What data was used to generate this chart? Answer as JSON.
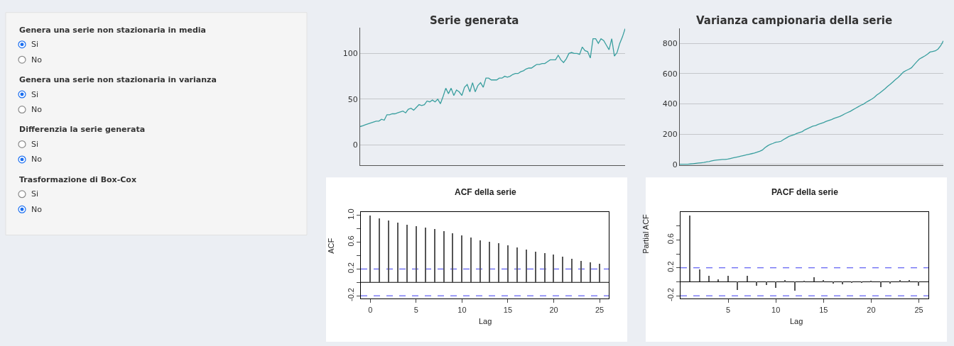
{
  "chart_data": [
    {
      "type": "other",
      "annotations": [
        "Genera una serie non stazionaria in media",
        "Si",
        "No",
        "Genera una serie non stazionaria in varianza",
        "Si",
        "No",
        "Differenzia la serie generata",
        "Si",
        "No",
        "Trasformazione di Box-Cox",
        "Si",
        "No"
      ]
    },
    {
      "type": "line",
      "title": "Serie generata",
      "categories": [
        null,
        null,
        null,
        null,
        null,
        null,
        null,
        null,
        null,
        null,
        null,
        null,
        null,
        null,
        null,
        null,
        null,
        null,
        null,
        null,
        null,
        null,
        null,
        null,
        null,
        null,
        null,
        null,
        null,
        null,
        null,
        null,
        null,
        null,
        null,
        null,
        null,
        null,
        null,
        null,
        null,
        null,
        null,
        null,
        null,
        null,
        null,
        null,
        null,
        null,
        null,
        null,
        null,
        null,
        null,
        null,
        null,
        null,
        null,
        null,
        null,
        null,
        null,
        null,
        null,
        null,
        null,
        null,
        null,
        null,
        null,
        null,
        null,
        null,
        null,
        null,
        null,
        null,
        null,
        null,
        null,
        null,
        null,
        null,
        null,
        null,
        null,
        null,
        null,
        null,
        null,
        null,
        null,
        null,
        null,
        null,
        null,
        null,
        null,
        null
      ],
      "series": [
        {
          "color": "#3a9f9f",
          "values": [
            20,
            21,
            22,
            23,
            24,
            25,
            26,
            26,
            28,
            27,
            33,
            33,
            34,
            34,
            35,
            36,
            37,
            35,
            39,
            40,
            38,
            41,
            44,
            43,
            44,
            48,
            47,
            49,
            47,
            50,
            45,
            53,
            62,
            56,
            62,
            54,
            60,
            58,
            54,
            63,
            66,
            58,
            68,
            58,
            65,
            68,
            63,
            73,
            73,
            71,
            71,
            71,
            73,
            73,
            75,
            74,
            75,
            77,
            78,
            78,
            80,
            81,
            83,
            84,
            84,
            86,
            88,
            88,
            89,
            89,
            91,
            93,
            93,
            93,
            98,
            93,
            90,
            94,
            100,
            101,
            100,
            100,
            99,
            107,
            103,
            102,
            95,
            116,
            116,
            111,
            116,
            114,
            109,
            104,
            116,
            97,
            101,
            111,
            118,
            127
          ]
        }
      ],
      "ylim": [
        -22,
        128
      ],
      "yticks": [
        0,
        50,
        100
      ],
      "grid": "y",
      "tick_labels": "y"
    },
    {
      "type": "line",
      "title": "Varianza campionaria della serie",
      "categories": [
        null,
        null,
        null,
        null,
        null,
        null,
        null,
        null,
        null,
        null,
        null,
        null,
        null,
        null,
        null,
        null,
        null,
        null,
        null,
        null,
        null,
        null,
        null,
        null,
        null,
        null,
        null,
        null,
        null,
        null,
        null,
        null,
        null,
        null,
        null,
        null,
        null,
        null,
        null,
        null,
        null,
        null,
        null,
        null,
        null,
        null,
        null,
        null,
        null,
        null,
        null,
        null,
        null,
        null,
        null,
        null,
        null,
        null,
        null,
        null,
        null,
        null,
        null,
        null,
        null,
        null,
        null,
        null,
        null,
        null,
        null,
        null,
        null,
        null,
        null,
        null,
        null,
        null,
        null,
        null,
        null,
        null,
        null,
        null,
        null,
        null,
        null,
        null,
        null,
        null,
        null,
        null,
        null,
        null,
        null,
        null,
        null,
        null,
        null,
        null
      ],
      "series": [
        {
          "color": "#3a9f9f",
          "values": [
            0,
            0,
            0,
            0,
            2,
            4,
            6,
            8,
            10,
            12,
            16,
            18,
            22,
            26,
            28,
            30,
            32,
            32,
            34,
            38,
            42,
            46,
            50,
            54,
            58,
            62,
            66,
            70,
            74,
            80,
            86,
            94,
            110,
            122,
            132,
            138,
            146,
            148,
            152,
            164,
            174,
            184,
            190,
            196,
            204,
            210,
            216,
            228,
            236,
            244,
            252,
            256,
            264,
            270,
            276,
            284,
            290,
            296,
            304,
            310,
            316,
            324,
            334,
            342,
            350,
            360,
            370,
            380,
            390,
            398,
            410,
            420,
            430,
            442,
            458,
            470,
            484,
            498,
            514,
            528,
            544,
            560,
            574,
            592,
            610,
            620,
            628,
            638,
            658,
            678,
            696,
            706,
            716,
            728,
            742,
            746,
            750,
            762,
            784,
            816
          ]
        }
      ],
      "ylim": [
        -5,
        898
      ],
      "yticks": [
        0,
        200,
        400,
        600,
        800
      ],
      "grid": "y",
      "tick_labels": "y"
    },
    {
      "type": "bar",
      "title": "ACF della serie",
      "xlabel": "Lag",
      "ylabel": "ACF",
      "x": [
        0,
        1,
        2,
        3,
        4,
        5,
        6,
        7,
        8,
        9,
        10,
        11,
        12,
        13,
        14,
        15,
        16,
        17,
        18,
        19,
        20,
        21,
        22,
        23,
        24,
        25
      ],
      "series": [
        {
          "color": "#555555",
          "values": [
            1.0,
            0.95,
            0.92,
            0.89,
            0.86,
            0.84,
            0.81,
            0.79,
            0.76,
            0.73,
            0.7,
            0.67,
            0.63,
            0.6,
            0.58,
            0.55,
            0.52,
            0.49,
            0.46,
            0.43,
            0.41,
            0.38,
            0.35,
            0.32,
            0.3,
            0.28
          ]
        }
      ],
      "xlim": [
        -1.03,
        26
      ],
      "xticks": [
        0,
        5,
        10,
        15,
        20,
        25
      ],
      "ylim": [
        -0.245,
        1.048
      ],
      "yticks": [
        -0.2,
        {
          "value": 0,
          "label": null
        },
        0.2,
        {
          "value": 0.4,
          "label": null
        },
        0.6,
        {
          "value": 0.8,
          "label": null
        },
        {
          "value": 1,
          "label": "1.0"
        }
      ],
      "ref_lines": [
        {
          "axis": "y",
          "value": 0,
          "color": "#000000",
          "line_style": "solid"
        },
        {
          "axis": "y",
          "value": 0.2,
          "color": "#3c3cf0",
          "line_style": "dashed"
        },
        {
          "axis": "y",
          "value": -0.2,
          "color": "#3c3cf0",
          "line_style": "dashed"
        }
      ]
    },
    {
      "type": "bar",
      "title": "PACF della serie",
      "xlabel": "Lag",
      "ylabel": "Partial ACF",
      "x": [
        1,
        2,
        3,
        4,
        5,
        6,
        7,
        8,
        9,
        10,
        11,
        12,
        13,
        14,
        15,
        16,
        17,
        18,
        19,
        20,
        21,
        22,
        23,
        24,
        25
      ],
      "series": [
        {
          "color": "#555555",
          "values": [
            0.95,
            0.18,
            0.08,
            0.03,
            0.08,
            -0.12,
            0.08,
            -0.06,
            -0.05,
            -0.09,
            0.02,
            -0.13,
            0.01,
            0.06,
            0.02,
            -0.03,
            -0.04,
            -0.02,
            -0.02,
            0.01,
            -0.08,
            -0.03,
            0.02,
            0.02,
            -0.06
          ]
        }
      ],
      "xlim": [
        0.01,
        26
      ],
      "xticks": [
        5,
        10,
        15,
        20,
        25
      ],
      "ylim": [
        -0.243,
        0.997
      ],
      "yticks": [
        -0.2,
        {
          "value": 0,
          "label": null
        },
        0.2,
        {
          "value": 0.4,
          "label": null
        },
        0.6,
        {
          "value": 0.8,
          "label": null
        }
      ],
      "ref_lines": [
        {
          "axis": "y",
          "value": 0,
          "color": "#000000",
          "line_style": "solid"
        },
        {
          "axis": "y",
          "value": 0.2,
          "color": "#3c3cf0",
          "line_style": "dashed"
        },
        {
          "axis": "y",
          "value": -0.2,
          "color": "#3c3cf0",
          "line_style": "dashed"
        }
      ]
    }
  ]
}
